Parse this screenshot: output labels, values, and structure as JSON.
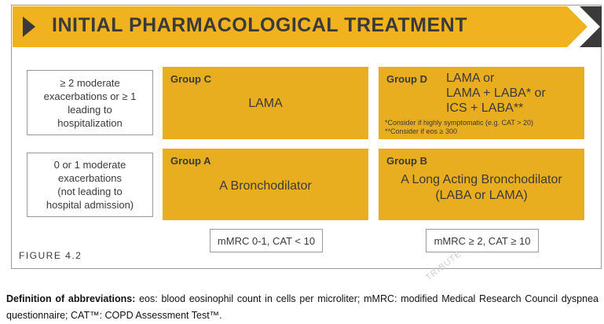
{
  "banner": {
    "title": "INITIAL PHARMACOLOGICAL TREATMENT"
  },
  "rows": {
    "top": [
      "≥ 2 moderate",
      "exacerbations or ≥ 1",
      "leading to",
      "hospitalization"
    ],
    "bottom": [
      "0 or 1 moderate",
      "exacerbations",
      "(not leading to",
      "hospital admission)"
    ]
  },
  "groups": {
    "c": {
      "name": "Group C",
      "lines": [
        "LAMA"
      ]
    },
    "d": {
      "name": "Group D",
      "lines": [
        "LAMA  or",
        "LAMA + LABA* or",
        "ICS + LABA**"
      ],
      "notes": [
        "*Consider if highly symptomatic (e.g. CAT > 20)",
        "**Consider if eos ≥ 300"
      ]
    },
    "a": {
      "name": "Group A",
      "lines": [
        "A Bronchodilator"
      ]
    },
    "b": {
      "name": "Group B",
      "lines": [
        "A  Long Acting Bronchodilator",
        "(LABA or LAMA)"
      ]
    }
  },
  "axis": {
    "left": "mMRC 0-1, CAT < 10",
    "right": "mMRC ≥ 2, CAT ≥ 10"
  },
  "figure_label": "FIGURE 4.2",
  "footnote": {
    "label": "Definition of abbreviations:",
    "text": " eos: blood eosinophil count in cells per microliter; mMRC: modified Medical Research Council dyspnea questionnaire; CAT™: COPD Assessment Test™."
  },
  "watermark": "TRIBUTE",
  "colors": {
    "banner": "#f1b220",
    "group": "#e9ae1f",
    "arrow_dark": "#3a3a3a"
  }
}
